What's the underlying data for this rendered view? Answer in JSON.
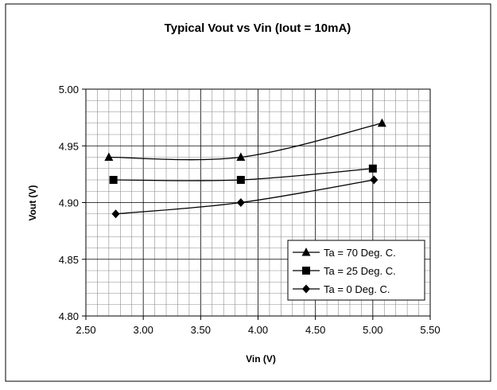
{
  "chart_data": {
    "type": "line",
    "title": "Typical Vout vs Vin (Iout = 10mA)",
    "xlabel": "Vin (V)",
    "ylabel": "Vout (V)",
    "xlim": [
      2.5,
      5.5
    ],
    "ylim": [
      4.8,
      5.0
    ],
    "x_ticks": [
      "2.50",
      "3.00",
      "3.50",
      "4.00",
      "4.50",
      "5.00",
      "5.50"
    ],
    "y_ticks": [
      "4.80",
      "4.85",
      "4.90",
      "4.95",
      "5.00"
    ],
    "x_tick_values": [
      2.5,
      3.0,
      3.5,
      4.0,
      4.5,
      5.0,
      5.5
    ],
    "y_tick_values": [
      4.8,
      4.85,
      4.9,
      4.95,
      5.0
    ],
    "grid": true,
    "legend_position": "bottom-right",
    "series": [
      {
        "name": "Ta = 70 Deg. C.",
        "marker": "triangle",
        "color": "#000000",
        "points": [
          [
            2.7,
            4.94
          ],
          [
            3.85,
            4.94
          ],
          [
            5.08,
            4.97
          ]
        ]
      },
      {
        "name": "Ta = 25 Deg. C.",
        "marker": "square",
        "color": "#000000",
        "points": [
          [
            2.74,
            4.92
          ],
          [
            3.85,
            4.92
          ],
          [
            5.0,
            4.93
          ]
        ]
      },
      {
        "name": "Ta = 0 Deg. C.",
        "marker": "diamond",
        "color": "#000000",
        "points": [
          [
            2.76,
            4.89
          ],
          [
            3.85,
            4.9
          ],
          [
            5.01,
            4.92
          ]
        ]
      }
    ]
  }
}
